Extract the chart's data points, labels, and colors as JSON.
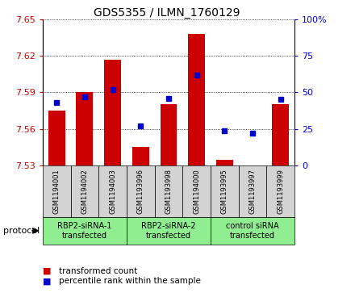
{
  "title": "GDS5355 / ILMN_1760129",
  "samples": [
    "GSM1194001",
    "GSM1194002",
    "GSM1194003",
    "GSM1193996",
    "GSM1193998",
    "GSM1194000",
    "GSM1193995",
    "GSM1193997",
    "GSM1193999"
  ],
  "transformed_count": [
    7.575,
    7.59,
    7.617,
    7.545,
    7.58,
    7.638,
    7.535,
    7.53,
    7.58
  ],
  "percentile_rank": [
    43,
    47,
    52,
    27,
    46,
    62,
    24,
    22,
    45
  ],
  "ylim_left": [
    7.53,
    7.65
  ],
  "ylim_right": [
    0,
    100
  ],
  "yticks_left": [
    7.53,
    7.56,
    7.59,
    7.62,
    7.65
  ],
  "yticks_right": [
    0,
    25,
    50,
    75,
    100
  ],
  "ytick_labels_right": [
    "0",
    "25",
    "50",
    "75",
    "100%"
  ],
  "bar_color": "#cc0000",
  "dot_color": "#0000cc",
  "baseline": 7.53,
  "groups": [
    {
      "label": "RBP2-siRNA-1\ntransfected",
      "start": 0,
      "end": 3,
      "color": "#90ee90"
    },
    {
      "label": "RBP2-siRNA-2\ntransfected",
      "start": 3,
      "end": 6,
      "color": "#90ee90"
    },
    {
      "label": "control siRNA\ntransfected",
      "start": 6,
      "end": 9,
      "color": "#90ee90"
    }
  ],
  "legend_bar_label": "transformed count",
  "legend_dot_label": "percentile rank within the sample",
  "protocol_label": "protocol",
  "tick_label_color_left": "#cc0000",
  "tick_label_color_right": "#0000cc",
  "sample_box_color": "#d3d3d3",
  "plot_bg_color": "#ffffff"
}
